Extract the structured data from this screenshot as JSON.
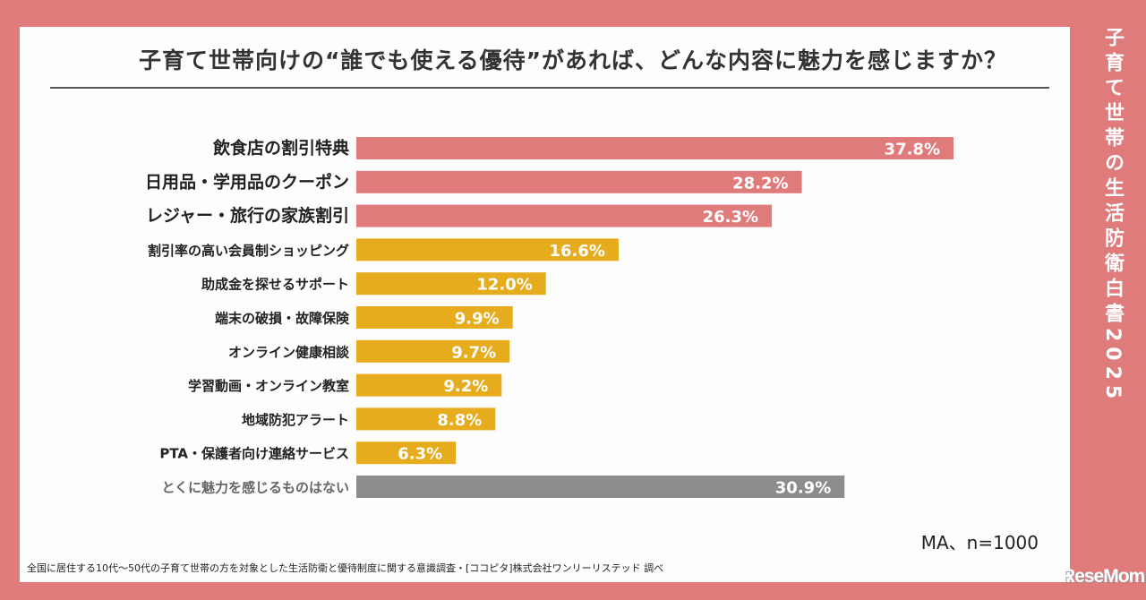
{
  "side_title": "子育て世帯の生活防衛白書2025",
  "note": "MA、n=1000",
  "source": "全国に居住する10代～50代の子育て世帯の方を対象とした生活防衛と優待制度に関する意識調査・[ココピタ]株式会社ワンリーリステッド 調べ",
  "logo": "ReseMom",
  "colors": {
    "background": "#e07b7b",
    "top3": "#e07b7b",
    "others": "#e6ac1e",
    "none": "#8c8c8c"
  },
  "chart_data": {
    "type": "bar",
    "orientation": "horizontal",
    "title": "子育て世帯向けの“誰でも使える優待”があれば、どんな内容に魅力を感じますか？",
    "unit": "%",
    "categories": [
      "飲食店の割引特典",
      "日用品・学用品のクーポン",
      "レジャー・旅行の家族割引",
      "割引率の高い会員制ショッピング",
      "助成金を探せるサポート",
      "端末の破損・故障保険",
      "オンライン健康相談",
      "学習動画・オンライン教室",
      "地域防犯アラート",
      "PTA・保護者向け連絡サービス",
      "とくに魅力を感じるものはない"
    ],
    "values": [
      37.8,
      28.2,
      26.3,
      16.6,
      12.0,
      9.9,
      9.7,
      9.2,
      8.8,
      6.3,
      30.9
    ],
    "labels": [
      "37.8%",
      "28.2%",
      "26.3%",
      "16.6%",
      "12.0%",
      "9.9%",
      "9.7%",
      "9.2%",
      "8.8%",
      "6.3%",
      "30.9%"
    ],
    "groups": [
      "top3",
      "top3",
      "top3",
      "others",
      "others",
      "others",
      "others",
      "others",
      "others",
      "others",
      "none"
    ],
    "grid": false,
    "legend": "none"
  }
}
